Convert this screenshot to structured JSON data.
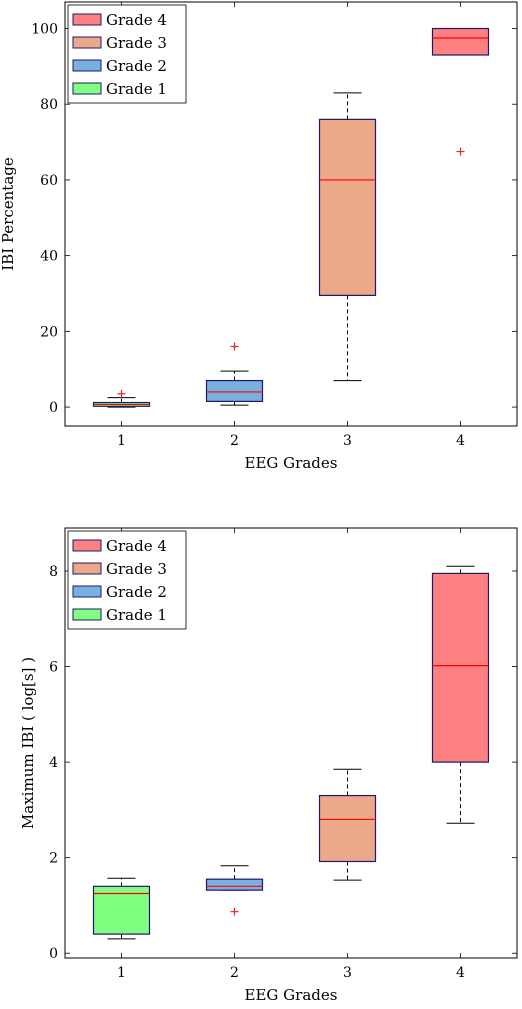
{
  "chart_data": [
    {
      "type": "box",
      "xlabel": "EEG Grades",
      "ylabel": "IBI Percentage",
      "ylim": [
        -5,
        107
      ],
      "yticks": [
        0,
        20,
        40,
        60,
        80,
        100
      ],
      "xticks": [
        1,
        2,
        3,
        4
      ],
      "legend_position": "top-left",
      "legend": [
        "Grade 4",
        "Grade 3",
        "Grade 2",
        "Grade 1"
      ],
      "median_color": "#ff0000",
      "series": [
        {
          "name": "Grade 1",
          "x": 1,
          "whisker_low": 0,
          "q1": 0.2,
          "median": 0.7,
          "q3": 1.2,
          "whisker_high": 2.5,
          "outliers": [
            3.5
          ],
          "color": "#80ff80"
        },
        {
          "name": "Grade 2",
          "x": 2,
          "whisker_low": 0.5,
          "q1": 1.5,
          "median": 4,
          "q3": 7,
          "whisker_high": 9.5,
          "outliers": [
            16
          ],
          "color": "#7ab0e0"
        },
        {
          "name": "Grade 3",
          "x": 3,
          "whisker_low": 7,
          "q1": 29.5,
          "median": 60,
          "q3": 76,
          "whisker_high": 83,
          "outliers": [],
          "color": "#eba98a"
        },
        {
          "name": "Grade 4",
          "x": 4,
          "whisker_low": 93,
          "q1": 93,
          "median": 97.5,
          "q3": 100,
          "whisker_high": 100,
          "outliers": [
            67.5
          ],
          "color": "#ff8080"
        }
      ]
    },
    {
      "type": "box",
      "xlabel": "EEG Grades",
      "ylabel": "Maximum IBI ( log[s] )",
      "ylim": [
        -0.1,
        8.9
      ],
      "yticks": [
        0,
        2,
        4,
        6,
        8
      ],
      "xticks": [
        1,
        2,
        3,
        4
      ],
      "legend_position": "top-left",
      "legend": [
        "Grade 4",
        "Grade 3",
        "Grade 2",
        "Grade 1"
      ],
      "median_color": "#ff0000",
      "series": [
        {
          "name": "Grade 1",
          "x": 1,
          "whisker_low": 0.3,
          "q1": 0.4,
          "median": 1.25,
          "q3": 1.4,
          "whisker_high": 1.57,
          "outliers": [],
          "color": "#80ff80"
        },
        {
          "name": "Grade 2",
          "x": 2,
          "whisker_low": 1.32,
          "q1": 1.32,
          "median": 1.4,
          "q3": 1.55,
          "whisker_high": 1.83,
          "outliers": [
            0.87
          ],
          "color": "#7ab0e0"
        },
        {
          "name": "Grade 3",
          "x": 3,
          "whisker_low": 1.53,
          "q1": 1.92,
          "median": 2.8,
          "q3": 3.3,
          "whisker_high": 3.85,
          "outliers": [],
          "color": "#eba98a"
        },
        {
          "name": "Grade 4",
          "x": 4,
          "whisker_low": 2.72,
          "q1": 4.0,
          "median": 6.02,
          "q3": 7.95,
          "whisker_high": 8.1,
          "outliers": [],
          "color": "#ff8080"
        }
      ]
    }
  ]
}
